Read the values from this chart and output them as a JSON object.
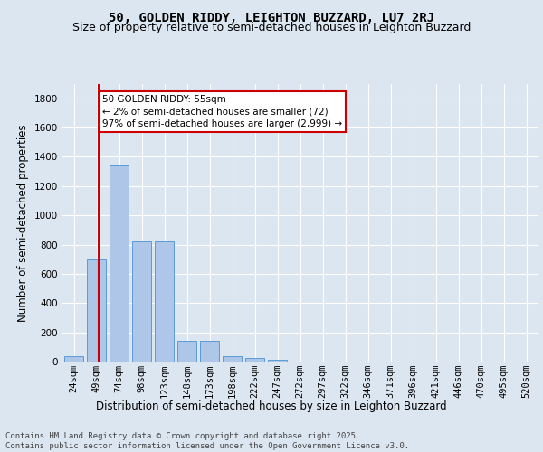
{
  "title": "50, GOLDEN RIDDY, LEIGHTON BUZZARD, LU7 2RJ",
  "subtitle": "Size of property relative to semi-detached houses in Leighton Buzzard",
  "xlabel": "Distribution of semi-detached houses by size in Leighton Buzzard",
  "ylabel": "Number of semi-detached properties",
  "categories": [
    "24sqm",
    "49sqm",
    "74sqm",
    "98sqm",
    "123sqm",
    "148sqm",
    "173sqm",
    "198sqm",
    "222sqm",
    "247sqm",
    "272sqm",
    "297sqm",
    "322sqm",
    "346sqm",
    "371sqm",
    "396sqm",
    "421sqm",
    "446sqm",
    "470sqm",
    "495sqm",
    "520sqm"
  ],
  "values": [
    40,
    700,
    1340,
    820,
    820,
    145,
    145,
    40,
    25,
    15,
    0,
    0,
    0,
    0,
    0,
    0,
    0,
    0,
    0,
    0,
    0
  ],
  "bar_color": "#aec6e8",
  "bar_edge_color": "#5b9bd5",
  "vline_x": 1.1,
  "annotation_text": "50 GOLDEN RIDDY: 55sqm\n← 2% of semi-detached houses are smaller (72)\n97% of semi-detached houses are larger (2,999) →",
  "annotation_box_color": "#ffffff",
  "annotation_box_edge_color": "#cc0000",
  "vline_color": "#cc0000",
  "ylim": [
    0,
    1900
  ],
  "yticks": [
    0,
    200,
    400,
    600,
    800,
    1000,
    1200,
    1400,
    1600,
    1800
  ],
  "background_color": "#dce6f1",
  "title_fontsize": 10,
  "subtitle_fontsize": 9,
  "xlabel_fontsize": 8.5,
  "ylabel_fontsize": 8.5,
  "tick_fontsize": 7.5,
  "annotation_fontsize": 7.5,
  "footer_fontsize": 6.5,
  "footer_text": "Contains HM Land Registry data © Crown copyright and database right 2025.\nContains public sector information licensed under the Open Government Licence v3.0."
}
